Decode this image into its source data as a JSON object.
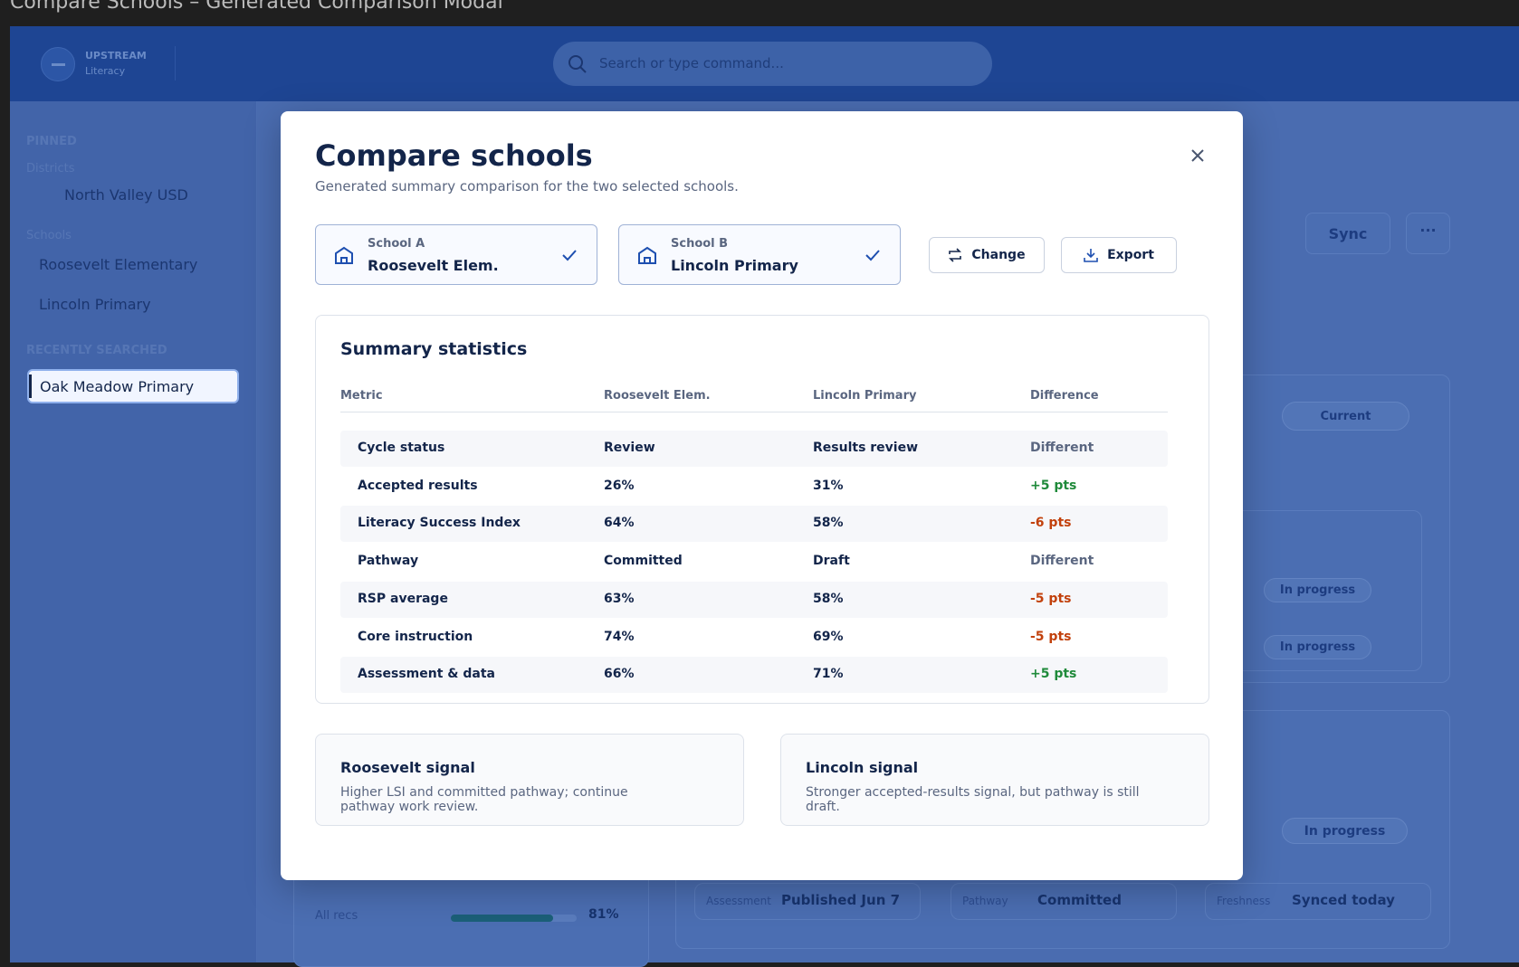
{
  "window": {
    "title": "Compare Schools – Generated Comparison Modal"
  },
  "header": {
    "brand": "UPSTREAM",
    "brand_sub": "Literacy",
    "search_placeholder": "Search or type command..."
  },
  "sidebar": {
    "pinned_label": "PINNED",
    "districts_label": "Districts",
    "districts": [
      "North Valley USD"
    ],
    "schools_label": "Schools",
    "schools": [
      "Roosevelt Elementary",
      "Lincoln Primary"
    ],
    "recent_label": "RECENTLY SEARCHED",
    "recent": [
      "Oak Meadow Primary"
    ]
  },
  "background": {
    "sync": "Sync",
    "current": "Current",
    "pills": [
      "In progress",
      "In progress",
      "In progress"
    ],
    "progress": {
      "label": "All recs",
      "value": 81,
      "value_label": "81%"
    },
    "facts": [
      {
        "label": "Assessment",
        "value": "Published Jun 7"
      },
      {
        "label": "Pathway",
        "value": "Committed"
      },
      {
        "label": "Freshness",
        "value": "Synced today"
      }
    ]
  },
  "modal": {
    "title": "Compare schools",
    "subtitle": "Generated summary comparison for the two selected schools.",
    "school_a": {
      "label": "School A",
      "name": "Roosevelt Elem."
    },
    "school_b": {
      "label": "School B",
      "name": "Lincoln Primary"
    },
    "buttons": [
      "Change",
      "Export"
    ],
    "table": {
      "title": "Summary statistics",
      "columns": [
        "Metric",
        "Roosevelt Elem.",
        "Lincoln Primary",
        "Difference"
      ],
      "rows": [
        [
          "Cycle status",
          "Review",
          "Results review",
          "Different"
        ],
        [
          "Accepted results",
          "26%",
          "31%",
          "+5 pts"
        ],
        [
          "Literacy Success Index",
          "64%",
          "58%",
          "-6 pts"
        ],
        [
          "Pathway",
          "Committed",
          "Draft",
          "Different"
        ],
        [
          "RSP average",
          "63%",
          "58%",
          "-5 pts"
        ],
        [
          "Core instruction",
          "74%",
          "69%",
          "-5 pts"
        ],
        [
          "Assessment & data",
          "66%",
          "71%",
          "+5 pts"
        ]
      ]
    },
    "signals": [
      {
        "title": "Roosevelt signal",
        "text": "Higher LSI and committed pathway; continue pathway work review."
      },
      {
        "title": "Lincoln signal",
        "text": "Stronger accepted-results signal, but pathway is still draft."
      }
    ]
  }
}
